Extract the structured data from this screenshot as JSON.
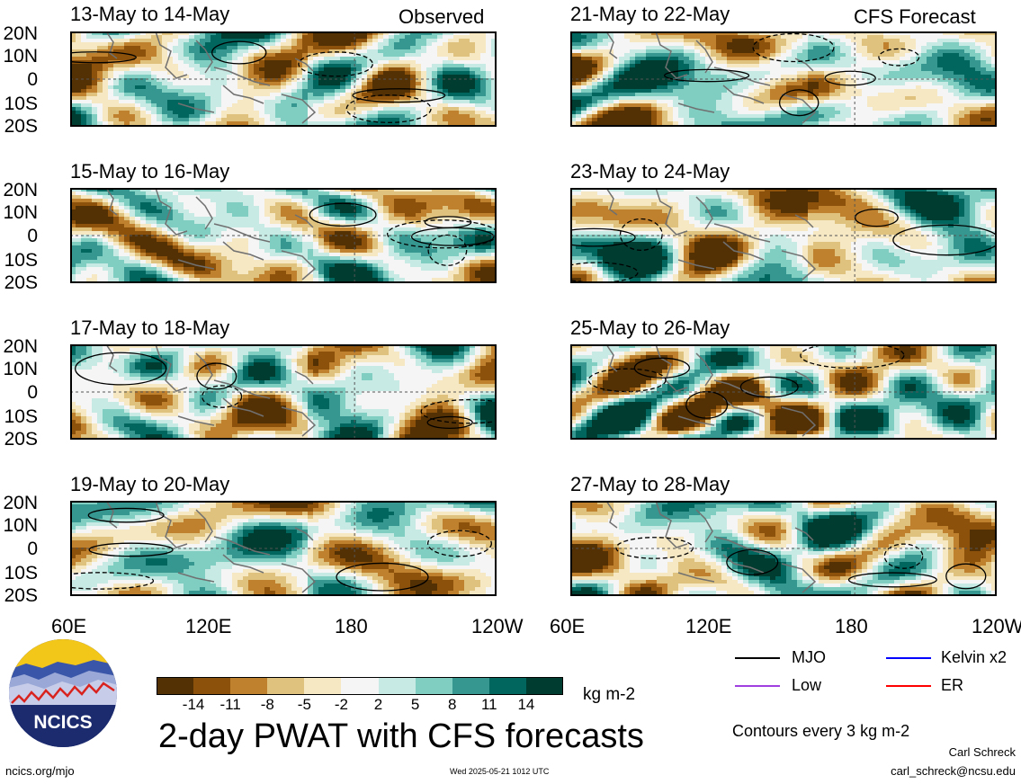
{
  "panel_titles": {
    "observed": [
      "13-May to 14-May",
      "15-May to 16-May",
      "17-May to 18-May",
      "19-May to 20-May"
    ],
    "forecast": [
      "21-May to 22-May",
      "23-May to 24-May",
      "25-May to 26-May",
      "27-May to 28-May"
    ]
  },
  "observed_label": "Observed",
  "forecast_label": "CFS Forecast",
  "lat_labels": [
    "20N",
    "10N",
    "0",
    "10S",
    "20S"
  ],
  "lon_labels": [
    "60E",
    "120E",
    "180",
    "120W"
  ],
  "colorbar": {
    "labels": [
      "-14",
      "-11",
      "-8",
      "-5",
      "-2",
      "2",
      "5",
      "8",
      "11",
      "14"
    ],
    "colors": [
      "#543005",
      "#8c510a",
      "#bf812d",
      "#dfc27d",
      "#f6e8c3",
      "#f5f5f5",
      "#c7eae5",
      "#80cdc1",
      "#35978f",
      "#01665e",
      "#003c30"
    ],
    "units": "kg m-2"
  },
  "legend": [
    {
      "label": "MJO",
      "color": "#000000"
    },
    {
      "label": "Kelvin x2",
      "color": "#0000ff"
    },
    {
      "label": "Low",
      "color": "#a040e0"
    },
    {
      "label": "ER",
      "color": "#ff0000"
    }
  ],
  "contour_note": "Contours every 3 kg m-2",
  "main_title": "2-day PWAT with CFS forecasts",
  "logo_text": "NCICS",
  "footer": {
    "url": "ncics.org/mjo",
    "timestamp": "Wed 2025-05-21 1012 UTC",
    "author": "Carl Schreck",
    "email": "carl_schreck@ncsu.edu"
  }
}
